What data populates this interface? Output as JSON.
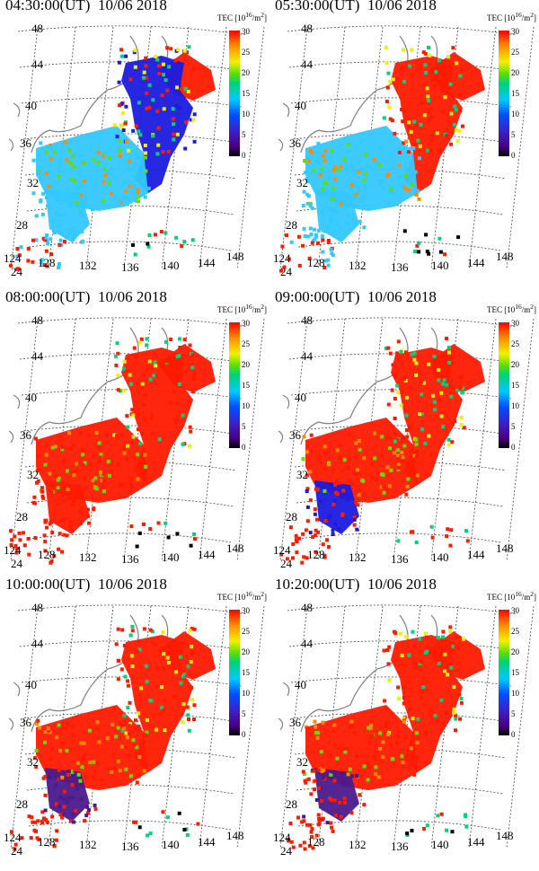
{
  "figure": {
    "panels": [
      {
        "time": "04:30:00(UT)",
        "date": "10/06 2018"
      },
      {
        "time": "05:30:00(UT)",
        "date": "10/06 2018"
      },
      {
        "time": "08:00:00(UT)",
        "date": "10/06 2018"
      },
      {
        "time": "09:00:00(UT)",
        "date": "10/06 2018"
      },
      {
        "time": "10:00:00(UT)",
        "date": "10/06 2018"
      },
      {
        "time": "10:20:00(UT)",
        "date": "10/06 2018"
      }
    ],
    "tec_label_prefix": "TEC [10",
    "tec_label_exp": "16",
    "tec_label_suffix": "/m",
    "tec_label_sq": "2",
    "tec_label_close": "]",
    "colorbar_ticks": [
      "30",
      "25",
      "20",
      "15",
      "10",
      "5",
      "0"
    ],
    "latitudes": [
      "48",
      "44",
      "40",
      "36",
      "32",
      "28",
      "24"
    ],
    "longitudes": [
      "124",
      "128",
      "132",
      "136",
      "140",
      "144",
      "148"
    ],
    "colors": {
      "high": "#ff1a00",
      "mid": "#33c8ff",
      "low_blue": "#1b1be0",
      "low_purple": "#4a1a8c",
      "coast": "#808080"
    }
  }
}
